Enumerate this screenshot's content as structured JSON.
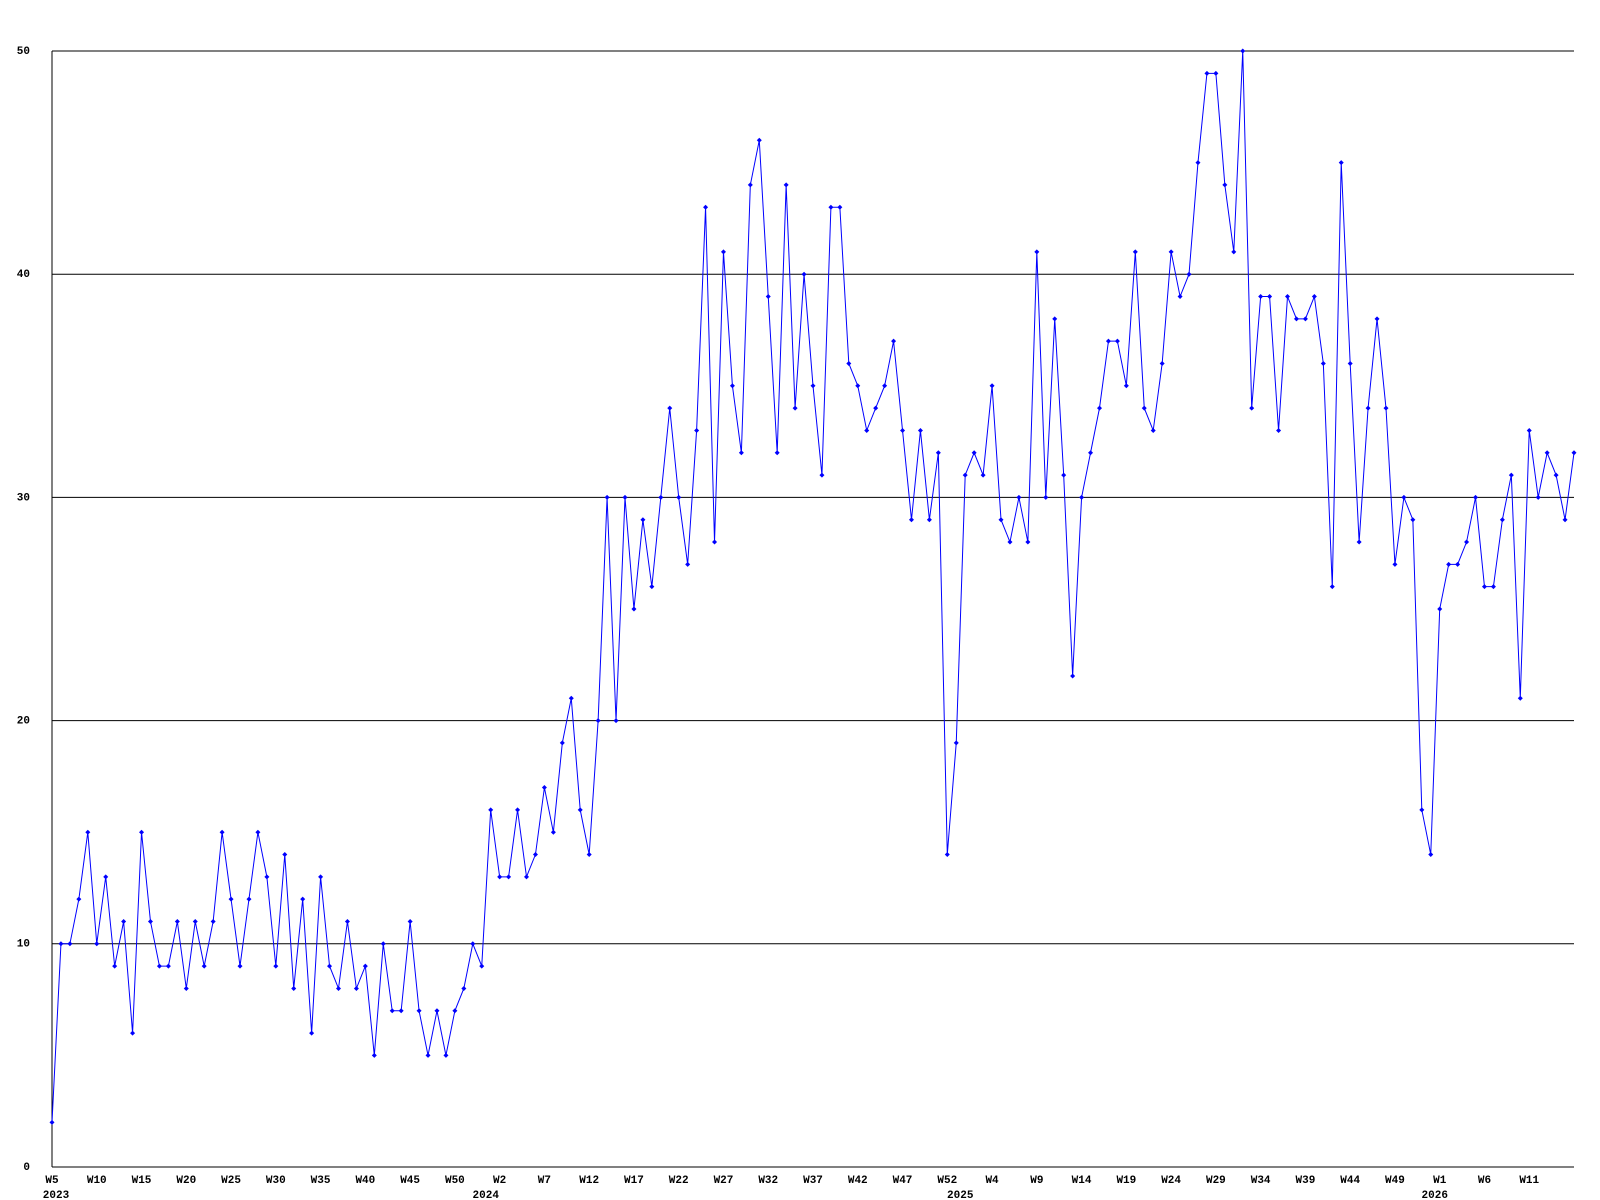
{
  "chart_data": {
    "type": "line",
    "categories": [
      "W5",
      null,
      null,
      null,
      null,
      "W10",
      null,
      null,
      null,
      null,
      "W15",
      null,
      null,
      null,
      null,
      "W20",
      null,
      null,
      null,
      null,
      "W25",
      null,
      null,
      null,
      null,
      "W30",
      null,
      null,
      null,
      null,
      "W35",
      null,
      null,
      null,
      null,
      "W40",
      null,
      null,
      null,
      null,
      "W45",
      null,
      null,
      null,
      null,
      "W50",
      null,
      null,
      null,
      null,
      "W2",
      null,
      null,
      null,
      null,
      "W7",
      null,
      null,
      null,
      null,
      "W12",
      null,
      null,
      null,
      null,
      "W17",
      null,
      null,
      null,
      null,
      "W22",
      null,
      null,
      null,
      null,
      "W27",
      null,
      null,
      null,
      null,
      "W32",
      null,
      null,
      null,
      null,
      "W37",
      null,
      null,
      null,
      null,
      "W42",
      null,
      null,
      null,
      null,
      "W47",
      null,
      null,
      null,
      null,
      "W52",
      null,
      null,
      null,
      null,
      "W4",
      null,
      null,
      null,
      null,
      "W9",
      null,
      null,
      null,
      null,
      "W14",
      null,
      null,
      null,
      null,
      "W19",
      null,
      null,
      null,
      null,
      "W24",
      null,
      null,
      null,
      null,
      "W29",
      null,
      null,
      null,
      null,
      "W34",
      null,
      null,
      null,
      null,
      "W39",
      null,
      null,
      null,
      null,
      "W44",
      null,
      null,
      null,
      null,
      "W49",
      null,
      null,
      null,
      null,
      "W1",
      null,
      null,
      null,
      null,
      "W6",
      null,
      null,
      null,
      null,
      "W11",
      null,
      null,
      null,
      null,
      null
    ],
    "category_years": [
      "2023",
      null,
      null,
      null,
      null,
      null,
      null,
      null,
      null,
      null,
      null,
      null,
      null,
      null,
      null,
      null,
      null,
      null,
      null,
      null,
      null,
      null,
      null,
      null,
      null,
      null,
      null,
      null,
      null,
      null,
      null,
      null,
      null,
      null,
      null,
      null,
      null,
      null,
      null,
      null,
      null,
      null,
      null,
      null,
      null,
      null,
      null,
      null,
      "2024",
      null,
      null,
      null,
      null,
      null,
      null,
      null,
      null,
      null,
      null,
      null,
      null,
      null,
      null,
      null,
      null,
      null,
      null,
      null,
      null,
      null,
      null,
      null,
      null,
      null,
      null,
      null,
      null,
      null,
      null,
      null,
      null,
      null,
      null,
      null,
      null,
      null,
      null,
      null,
      null,
      null,
      null,
      null,
      null,
      null,
      null,
      null,
      null,
      null,
      null,
      null,
      null,
      "2025",
      null,
      null,
      null,
      null,
      null,
      null,
      null,
      null,
      null,
      null,
      null,
      null,
      null,
      null,
      null,
      null,
      null,
      null,
      null,
      null,
      null,
      null,
      null,
      null,
      null,
      null,
      null,
      null,
      null,
      null,
      null,
      null,
      null,
      null,
      null,
      null,
      null,
      null,
      null,
      null,
      null,
      null,
      null,
      null,
      null,
      null,
      null,
      null,
      null,
      null,
      null,
      null,
      "2026",
      null,
      null,
      null,
      null,
      null,
      null,
      null,
      null,
      null,
      null,
      null,
      null,
      null,
      null,
      null,
      null
    ],
    "series": [
      {
        "color": "#0000ff",
        "values": [
          2,
          10,
          10,
          12,
          15,
          10,
          13,
          9,
          11,
          6,
          15,
          11,
          9,
          9,
          11,
          8,
          11,
          9,
          11,
          15,
          12,
          9,
          12,
          15,
          13,
          9,
          14,
          8,
          12,
          6,
          13,
          9,
          8,
          11,
          8,
          9,
          5,
          10,
          7,
          7,
          11,
          7,
          5,
          7,
          5,
          7,
          8,
          10,
          9,
          16,
          13,
          13,
          16,
          13,
          14,
          17,
          15,
          19,
          21,
          16,
          14,
          20,
          30,
          20,
          30,
          25,
          29,
          26,
          30,
          34,
          30,
          27,
          33,
          43,
          28,
          41,
          35,
          32,
          44,
          46,
          39,
          32,
          44,
          34,
          40,
          35,
          31,
          43,
          43,
          36,
          35,
          33,
          34,
          35,
          37,
          33,
          29,
          33,
          29,
          32,
          14,
          19,
          31,
          32,
          31,
          35,
          29,
          28,
          30,
          28,
          41,
          30,
          38,
          31,
          22,
          30,
          32,
          34,
          37,
          37,
          35,
          41,
          34,
          33,
          36,
          41,
          39,
          40,
          45,
          49,
          49,
          44,
          41,
          50,
          34,
          39,
          39,
          33,
          39,
          38,
          38,
          39,
          36,
          26,
          45,
          36,
          28,
          34,
          38,
          34,
          27,
          30,
          29,
          16,
          14,
          25,
          27,
          27,
          28,
          30,
          26,
          26,
          29,
          31,
          21,
          33,
          30,
          32,
          31,
          29,
          32
        ]
      }
    ],
    "ylim": [
      0,
      50
    ],
    "yticks": [
      0,
      10,
      20,
      30,
      40,
      50
    ],
    "grid": true
  }
}
